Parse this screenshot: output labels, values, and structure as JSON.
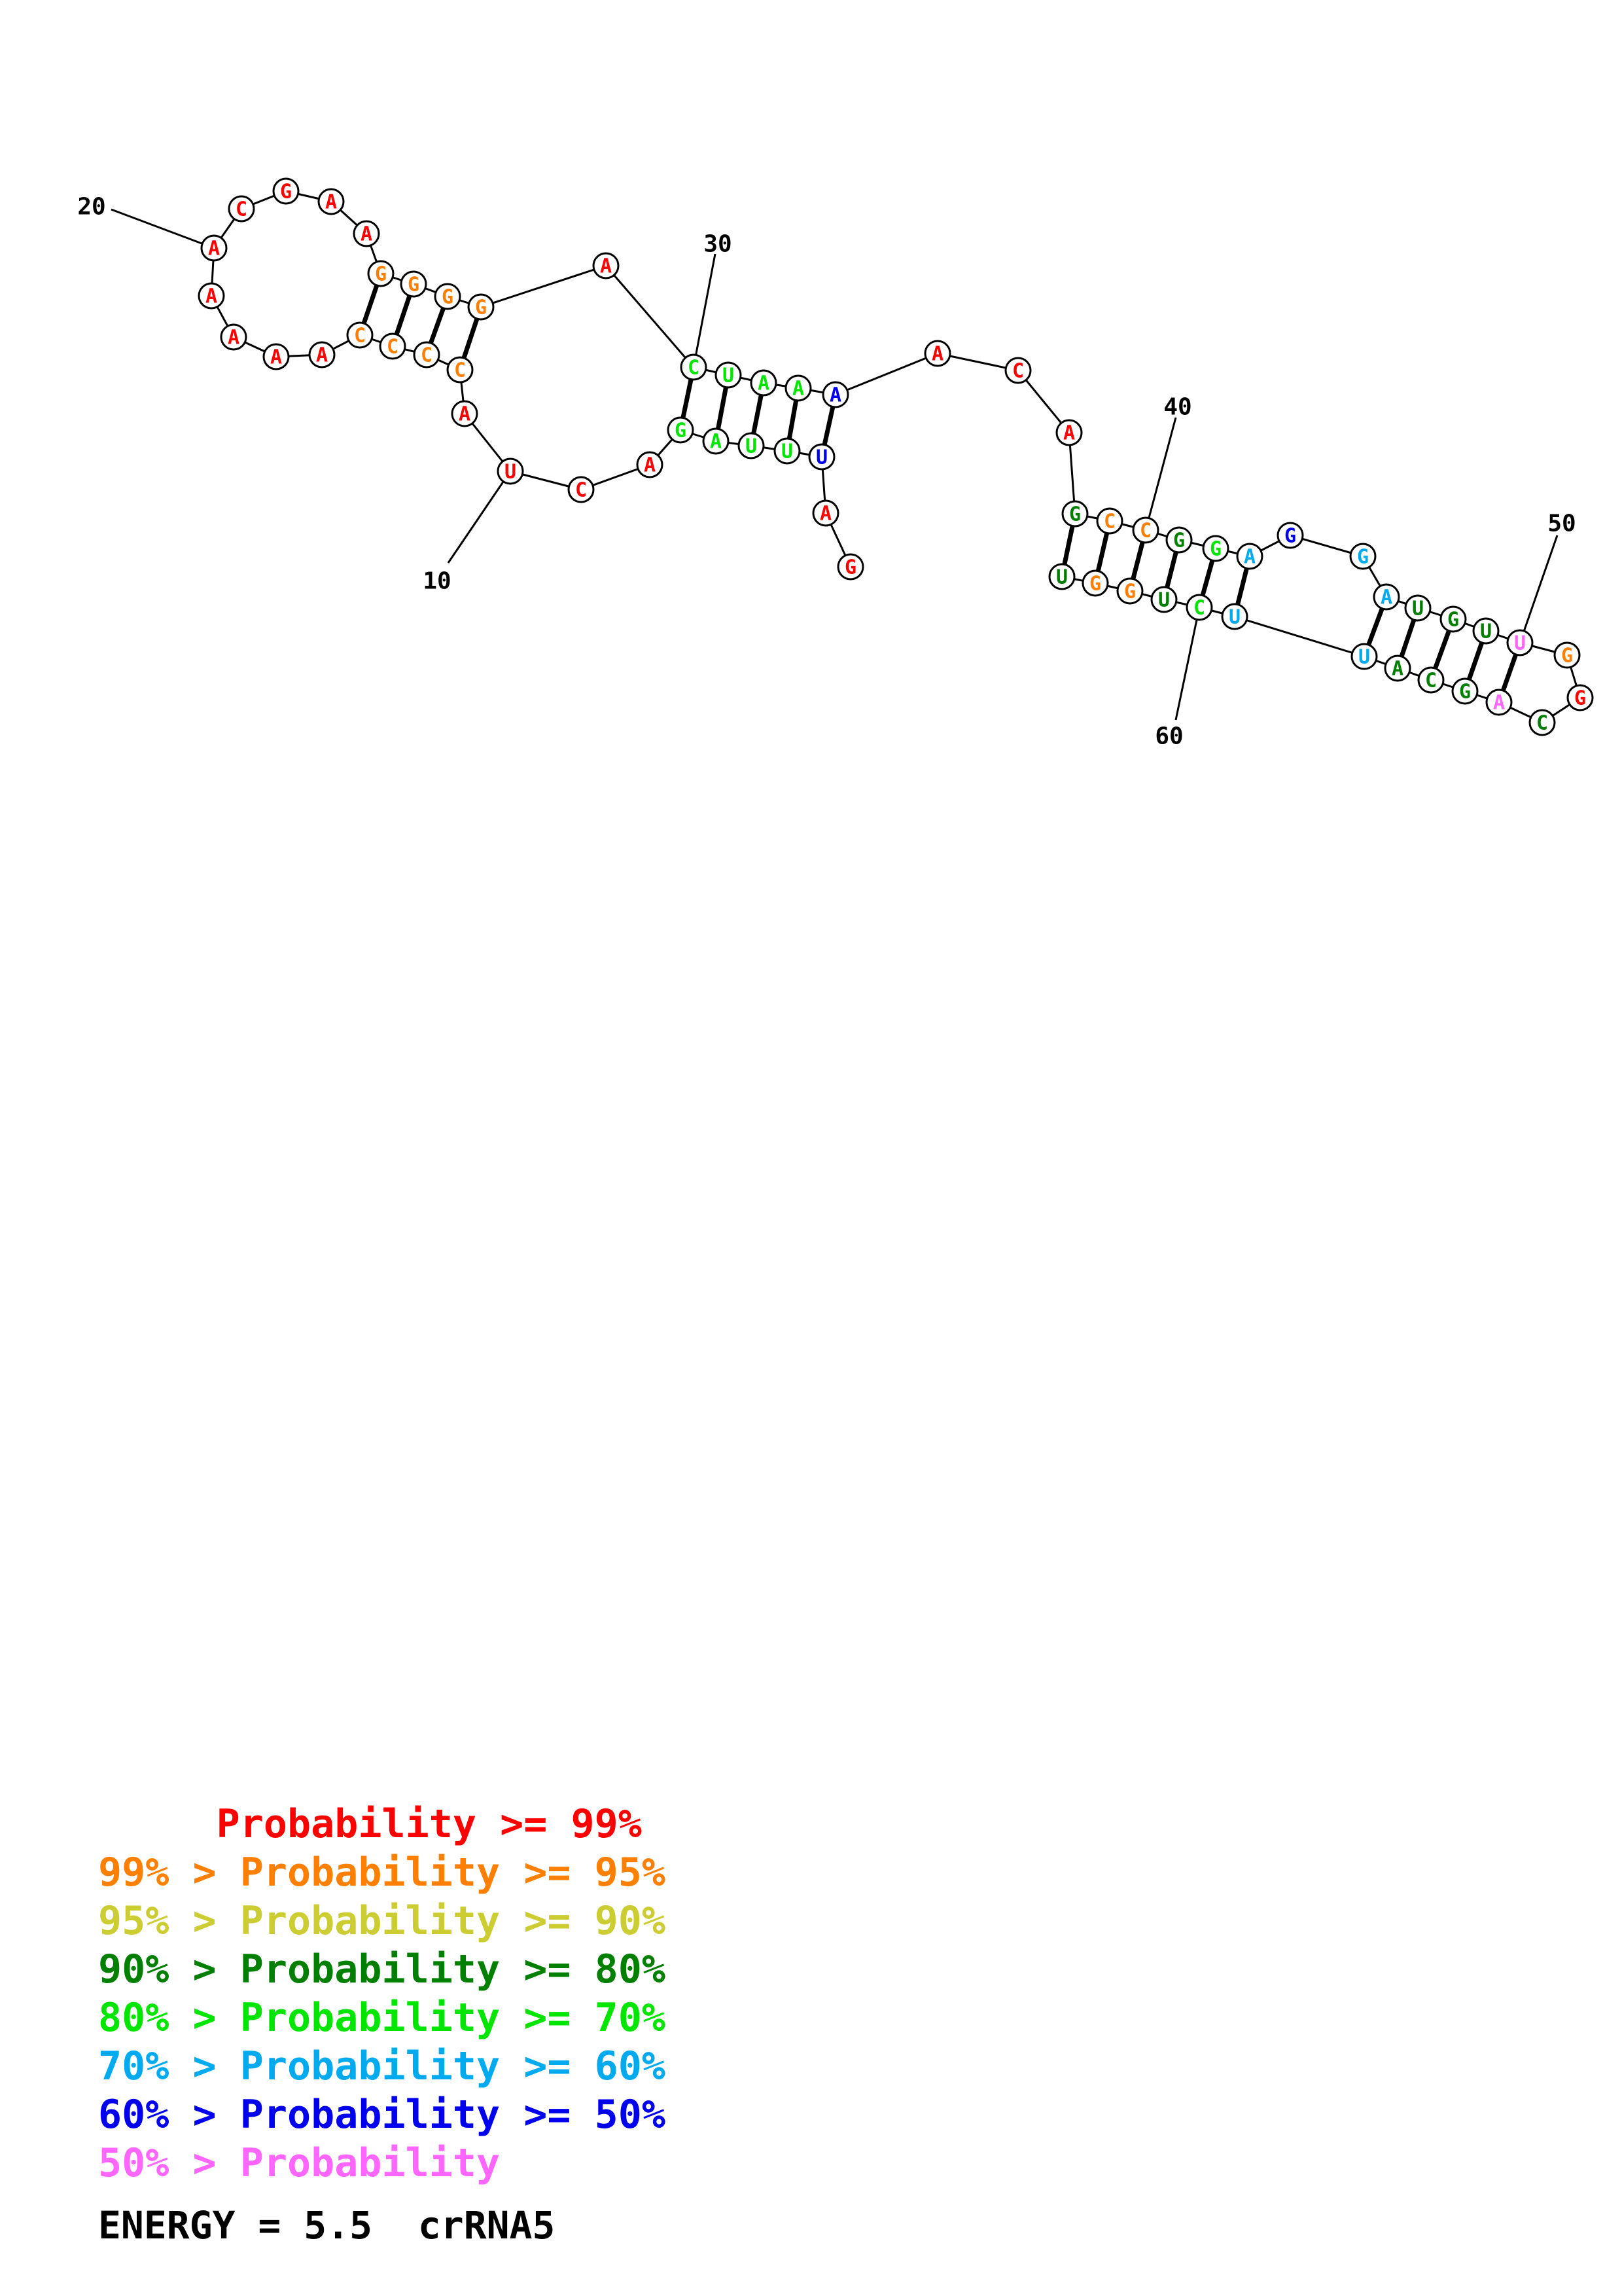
{
  "palette": {
    "red": "#ff0000",
    "orange": "#ff7f00",
    "yellow": "#cccc33",
    "darkgreen": "#007f00",
    "green": "#00e600",
    "cyan": "#00aaee",
    "blue": "#0000ee",
    "pink": "#ff66ff"
  },
  "diagram": {
    "nucleotides": [
      {
        "n": 1,
        "base": "G",
        "color": "red"
      },
      {
        "n": 2,
        "base": "A",
        "color": "red"
      },
      {
        "n": 3,
        "base": "U",
        "color": "blue"
      },
      {
        "n": 4,
        "base": "U",
        "color": "green"
      },
      {
        "n": 5,
        "base": "U",
        "color": "green"
      },
      {
        "n": 6,
        "base": "A",
        "color": "green"
      },
      {
        "n": 7,
        "base": "G",
        "color": "green"
      },
      {
        "n": 8,
        "base": "A",
        "color": "red"
      },
      {
        "n": 9,
        "base": "C",
        "color": "red"
      },
      {
        "n": 10,
        "base": "U",
        "color": "red"
      },
      {
        "n": 11,
        "base": "A",
        "color": "red"
      },
      {
        "n": 12,
        "base": "C",
        "color": "orange"
      },
      {
        "n": 13,
        "base": "C",
        "color": "orange"
      },
      {
        "n": 14,
        "base": "C",
        "color": "orange"
      },
      {
        "n": 15,
        "base": "C",
        "color": "orange"
      },
      {
        "n": 16,
        "base": "A",
        "color": "red"
      },
      {
        "n": 17,
        "base": "A",
        "color": "red"
      },
      {
        "n": 18,
        "base": "A",
        "color": "red"
      },
      {
        "n": 19,
        "base": "A",
        "color": "red"
      },
      {
        "n": 20,
        "base": "A",
        "color": "red"
      },
      {
        "n": 21,
        "base": "C",
        "color": "red"
      },
      {
        "n": 22,
        "base": "G",
        "color": "red"
      },
      {
        "n": 23,
        "base": "A",
        "color": "red"
      },
      {
        "n": 24,
        "base": "A",
        "color": "red"
      },
      {
        "n": 25,
        "base": "G",
        "color": "orange"
      },
      {
        "n": 26,
        "base": "G",
        "color": "orange"
      },
      {
        "n": 27,
        "base": "G",
        "color": "orange"
      },
      {
        "n": 28,
        "base": "G",
        "color": "orange"
      },
      {
        "n": 29,
        "base": "A",
        "color": "red"
      },
      {
        "n": 30,
        "base": "C",
        "color": "green"
      },
      {
        "n": 31,
        "base": "U",
        "color": "green"
      },
      {
        "n": 32,
        "base": "A",
        "color": "green"
      },
      {
        "n": 33,
        "base": "A",
        "color": "green"
      },
      {
        "n": 34,
        "base": "A",
        "color": "blue"
      },
      {
        "n": 35,
        "base": "A",
        "color": "red"
      },
      {
        "n": 36,
        "base": "C",
        "color": "red"
      },
      {
        "n": 37,
        "base": "A",
        "color": "red"
      },
      {
        "n": 38,
        "base": "G",
        "color": "darkgreen"
      },
      {
        "n": 39,
        "base": "C",
        "color": "orange"
      },
      {
        "n": 40,
        "base": "C",
        "color": "orange"
      },
      {
        "n": 41,
        "base": "G",
        "color": "darkgreen"
      },
      {
        "n": 42,
        "base": "G",
        "color": "green"
      },
      {
        "n": 43,
        "base": "A",
        "color": "cyan"
      },
      {
        "n": 44,
        "base": "G",
        "color": "blue"
      },
      {
        "n": 45,
        "base": "G",
        "color": "cyan"
      },
      {
        "n": 46,
        "base": "A",
        "color": "cyan"
      },
      {
        "n": 47,
        "base": "U",
        "color": "darkgreen"
      },
      {
        "n": 48,
        "base": "G",
        "color": "darkgreen"
      },
      {
        "n": 49,
        "base": "U",
        "color": "darkgreen"
      },
      {
        "n": 50,
        "base": "U",
        "color": "pink"
      },
      {
        "n": 51,
        "base": "G",
        "color": "orange"
      },
      {
        "n": 52,
        "base": "G",
        "color": "red"
      },
      {
        "n": 53,
        "base": "C",
        "color": "darkgreen"
      },
      {
        "n": 54,
        "base": "A",
        "color": "pink"
      },
      {
        "n": 55,
        "base": "G",
        "color": "darkgreen"
      },
      {
        "n": 56,
        "base": "C",
        "color": "darkgreen"
      },
      {
        "n": 57,
        "base": "A",
        "color": "darkgreen"
      },
      {
        "n": 58,
        "base": "U",
        "color": "cyan"
      },
      {
        "n": 59,
        "base": "U",
        "color": "cyan"
      },
      {
        "n": 60,
        "base": "C",
        "color": "green"
      },
      {
        "n": 61,
        "base": "U",
        "color": "darkgreen"
      },
      {
        "n": 62,
        "base": "G",
        "color": "orange"
      },
      {
        "n": 63,
        "base": "G",
        "color": "orange"
      },
      {
        "n": 64,
        "base": "U",
        "color": "darkgreen"
      }
    ],
    "pairs": [
      [
        3,
        34
      ],
      [
        4,
        33
      ],
      [
        5,
        32
      ],
      [
        6,
        31
      ],
      [
        7,
        30
      ],
      [
        12,
        28
      ],
      [
        13,
        27
      ],
      [
        14,
        26
      ],
      [
        15,
        25
      ],
      [
        38,
        64
      ],
      [
        39,
        63
      ],
      [
        40,
        62
      ],
      [
        41,
        61
      ],
      [
        42,
        60
      ],
      [
        43,
        59
      ],
      [
        46,
        58
      ],
      [
        47,
        57
      ],
      [
        48,
        56
      ],
      [
        49,
        55
      ],
      [
        50,
        54
      ]
    ],
    "position_labels": [
      "10",
      "20",
      "30",
      "40",
      "50",
      "60"
    ]
  },
  "legend": [
    {
      "text": "     Probability >= 99%",
      "color": "red"
    },
    {
      "text": "99% > Probability >= 95%",
      "color": "orange"
    },
    {
      "text": "95% > Probability >= 90%",
      "color": "yellow"
    },
    {
      "text": "90% > Probability >= 80%",
      "color": "darkgreen"
    },
    {
      "text": "80% > Probability >= 70%",
      "color": "green"
    },
    {
      "text": "70% > Probability >= 60%",
      "color": "cyan"
    },
    {
      "text": "60% > Probability >= 50%",
      "color": "blue"
    },
    {
      "text": "50% > Probability",
      "color": "pink"
    }
  ],
  "energy_line": "ENERGY = 5.5  crRNA5"
}
